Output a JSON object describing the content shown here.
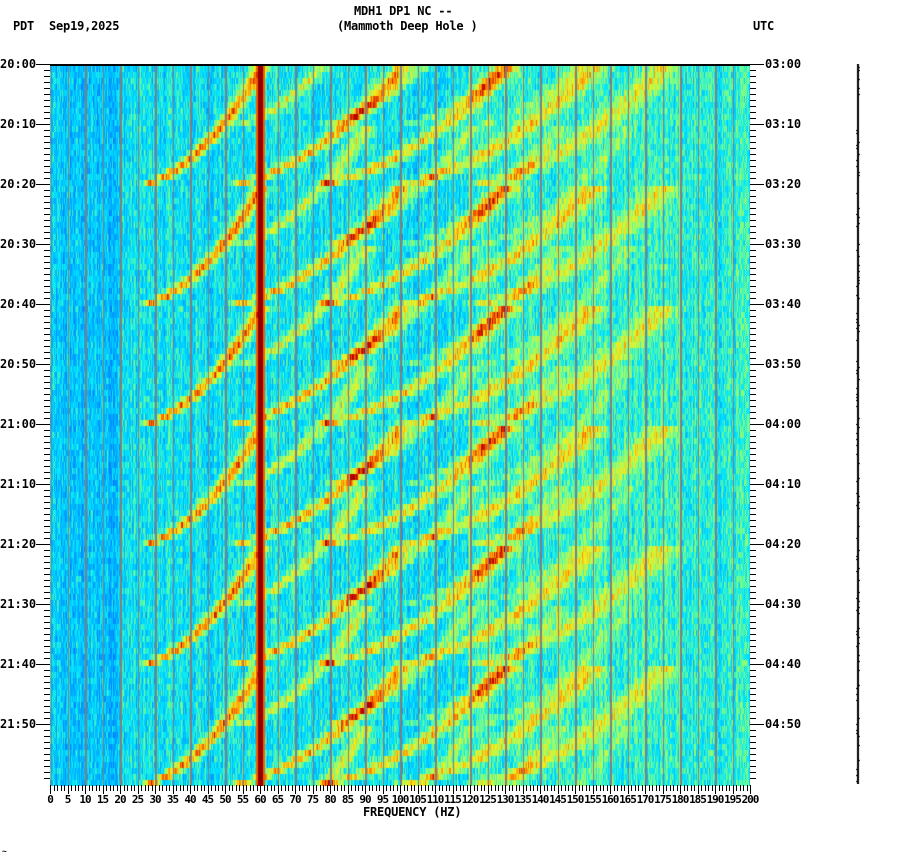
{
  "header": {
    "station_line": "MDH1 DP1 NC --",
    "location_line": "(Mammoth Deep Hole )",
    "left_tz": "PDT",
    "date": "Sep19,2025",
    "right_tz": "UTC"
  },
  "footer_mark": "~",
  "colors": {
    "background": "#ffffff",
    "axis": "#000000",
    "grid": "#7f7f7f",
    "low": "#0050ff",
    "mid": "#00c8ff",
    "high": "#f0f020",
    "peak": "#8b0000"
  },
  "chart_data": {
    "type": "heatmap",
    "title": "MDH1 DP1 NC -- (Mammoth Deep Hole )",
    "xlabel": "FREQUENCY (HZ)",
    "ylabel_left": "PDT",
    "ylabel_right": "UTC",
    "date": "Sep19,2025",
    "xlim": [
      0,
      200
    ],
    "x_ticks": [
      0,
      5,
      10,
      15,
      20,
      25,
      30,
      35,
      40,
      45,
      50,
      55,
      60,
      65,
      70,
      75,
      80,
      85,
      90,
      95,
      100,
      105,
      110,
      115,
      120,
      125,
      130,
      135,
      140,
      145,
      150,
      155,
      160,
      165,
      170,
      175,
      180,
      185,
      190,
      195,
      200
    ],
    "y_ticks_left": [
      "20:00",
      "20:10",
      "20:20",
      "20:30",
      "20:40",
      "20:50",
      "21:00",
      "21:10",
      "21:20",
      "21:30",
      "21:40",
      "21:50"
    ],
    "y_ticks_right": [
      "03:00",
      "03:10",
      "03:20",
      "03:30",
      "03:40",
      "03:50",
      "04:00",
      "04:10",
      "04:20",
      "04:30",
      "04:40",
      "04:50"
    ],
    "time_span_minutes": 120,
    "minor_tick_minutes": 1,
    "constant_lines_hz": [
      60,
      120,
      180
    ],
    "strong_line_hz": 60,
    "sweep_pattern": {
      "description": "Repeating upward-curving harmonic sweeps (approx 20-60 Hz fundamental and harmonics) with period ~20 minutes",
      "period_minutes": 20,
      "sweep_starts_minutes": [
        0,
        20,
        40,
        60,
        80,
        100
      ],
      "harmonic_start_hz": [
        20,
        42,
        66,
        88,
        110
      ],
      "harmonic_end_hz": [
        60,
        100,
        130,
        155,
        175
      ]
    },
    "colorscale": [
      "#0000c8",
      "#0050ff",
      "#00a0ff",
      "#00e6ff",
      "#80ff80",
      "#f0f020",
      "#ff8000",
      "#c00000",
      "#8b0000"
    ]
  }
}
